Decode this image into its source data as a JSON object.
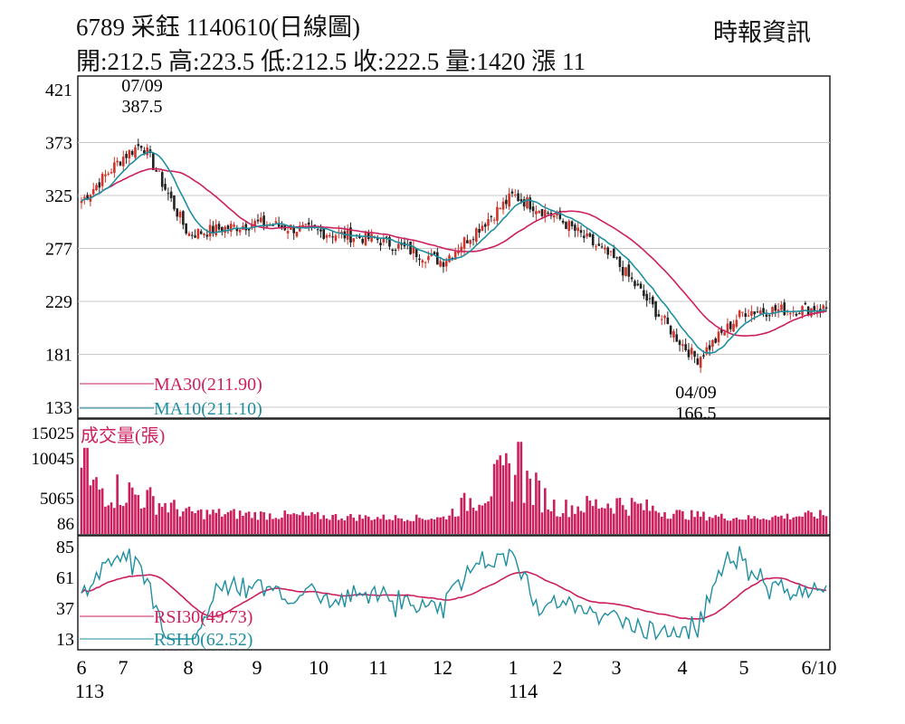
{
  "header": {
    "title": "6789  采鈺 1140610(日線圖)",
    "quote": "開:212.5 高:223.5 低:212.5 收:222.5 量:1420 漲 11",
    "source": "時報資訊"
  },
  "chart_data": [
    {
      "type": "candlestick",
      "title": "6789 采鈺 1140610(日線圖)",
      "y_ticks": [
        "421",
        "373",
        "325",
        "277",
        "229",
        "181",
        "133"
      ],
      "ylim": [
        133,
        421
      ],
      "x_ticks": [
        "6",
        "7",
        "8",
        "9",
        "10",
        "11",
        "12",
        "1",
        "2",
        "3",
        "4",
        "5",
        "6/10"
      ],
      "year_labels": [
        "113",
        "114"
      ],
      "annotations": [
        {
          "date": "07/09",
          "value": "387.5",
          "kind": "high"
        },
        {
          "date": "04/09",
          "value": "166.5",
          "kind": "low"
        }
      ],
      "series": [
        {
          "name": "MA30(211.90)",
          "color": "#cc1f5e"
        },
        {
          "name": "MA10(211.10)",
          "color": "#1f8fa0"
        }
      ],
      "monthly_close": [
        {
          "month": "6",
          "value": 320
        },
        {
          "month": "7",
          "value": 360
        },
        {
          "month": "8",
          "value": 290
        },
        {
          "month": "9",
          "value": 300
        },
        {
          "month": "10",
          "value": 292
        },
        {
          "month": "11",
          "value": 285
        },
        {
          "month": "12",
          "value": 265
        },
        {
          "month": "1",
          "value": 325
        },
        {
          "month": "2",
          "value": 305
        },
        {
          "month": "3",
          "value": 265
        },
        {
          "month": "4",
          "value": 190
        },
        {
          "month": "5",
          "value": 220
        },
        {
          "month": "6/10",
          "value": 222.5
        }
      ]
    },
    {
      "type": "bar",
      "title": "成交量(張)",
      "y_ticks": [
        "15025",
        "10045",
        "5065",
        "86"
      ],
      "ylim": [
        86,
        15025
      ],
      "monthly_volume": [
        {
          "month": "6",
          "value": 6000
        },
        {
          "month": "7",
          "value": 5500
        },
        {
          "month": "8",
          "value": 1800
        },
        {
          "month": "9",
          "value": 1500
        },
        {
          "month": "10",
          "value": 1200
        },
        {
          "month": "11",
          "value": 1000
        },
        {
          "month": "12",
          "value": 900
        },
        {
          "month": "1",
          "value": 8500
        },
        {
          "month": "2",
          "value": 2500
        },
        {
          "month": "3",
          "value": 3500
        },
        {
          "month": "4",
          "value": 1500
        },
        {
          "month": "5",
          "value": 900
        },
        {
          "month": "6/10",
          "value": 1420
        }
      ],
      "color": "#cc1f5e"
    },
    {
      "type": "line",
      "y_ticks": [
        "85",
        "61",
        "37",
        "13"
      ],
      "ylim": [
        13,
        85
      ],
      "series": [
        {
          "name": "RSI30(49.73)",
          "color": "#cc1f5e"
        },
        {
          "name": "RSI10(62.52)",
          "color": "#1f8fa0"
        }
      ]
    }
  ]
}
